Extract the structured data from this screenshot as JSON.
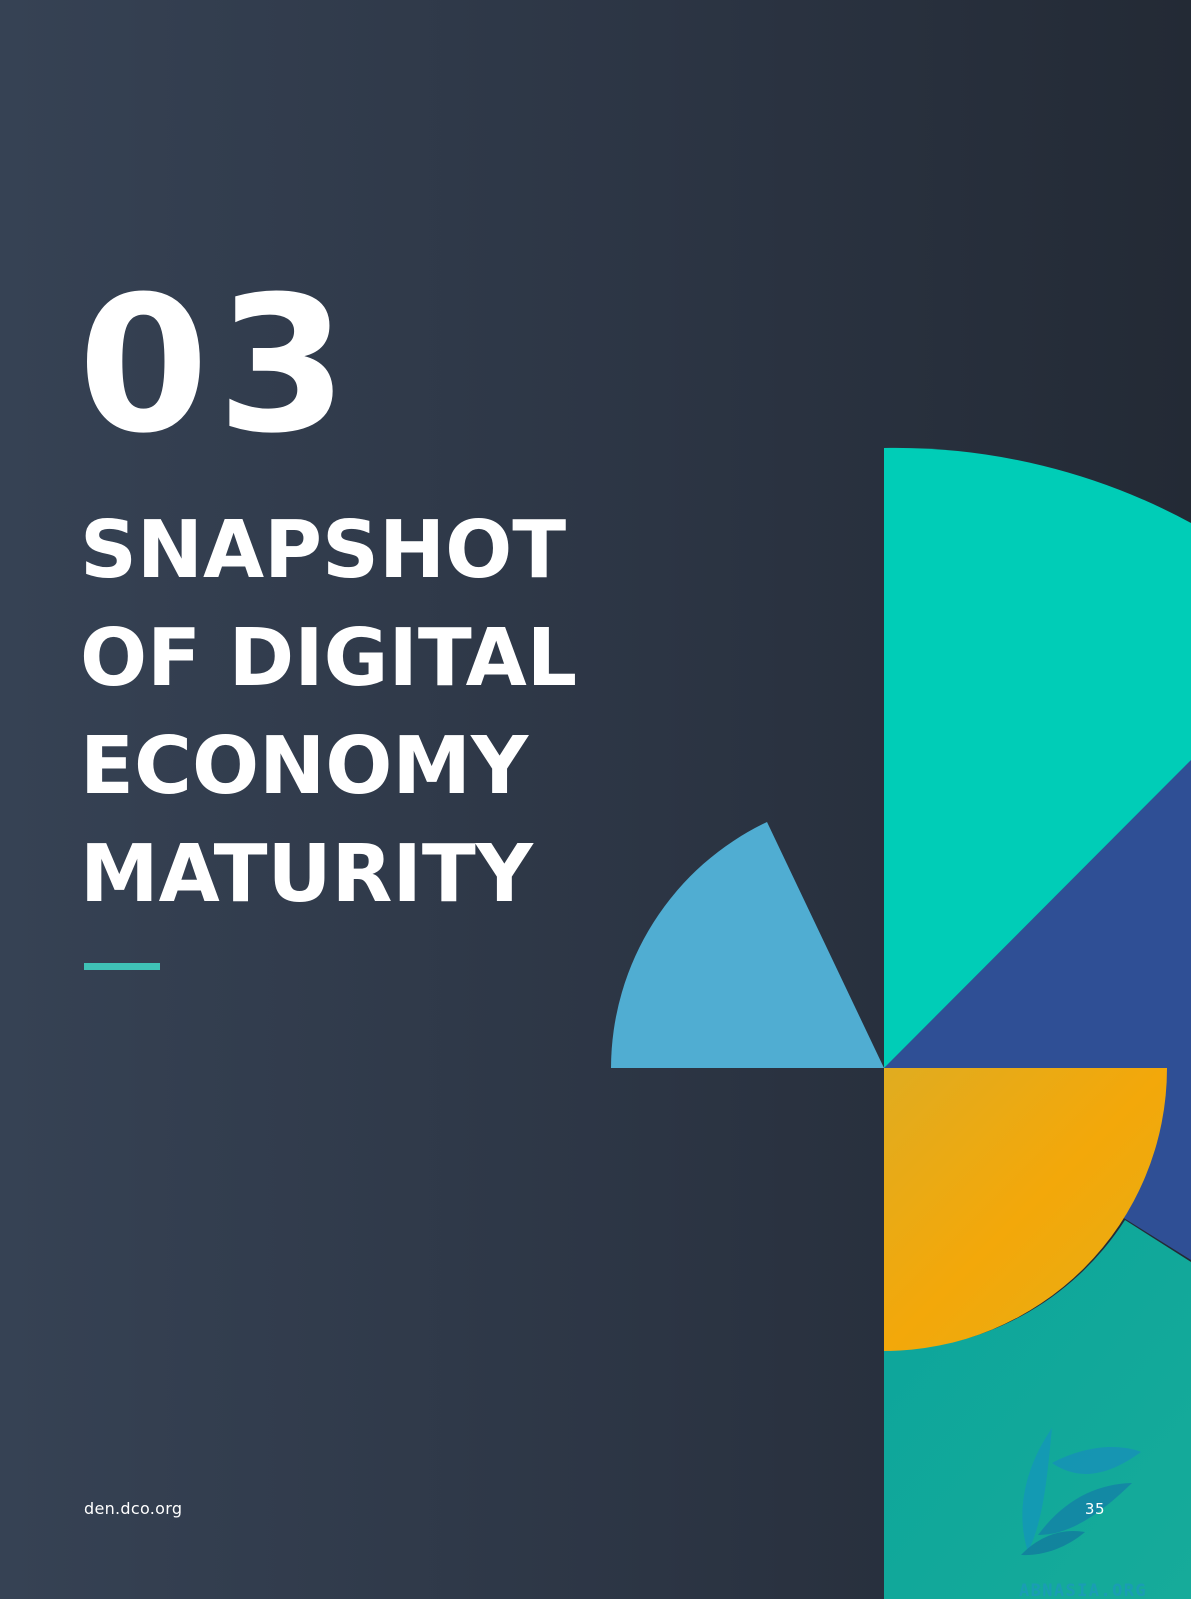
{
  "page": {
    "chapter_number": "03",
    "title_lines": [
      "SNAPSHOT",
      "OF DIGITAL",
      "ECONOMY",
      "MATURITY"
    ],
    "footer_url": "den.dco.org",
    "page_number": "35",
    "watermark": "ABNASIA.ORG"
  },
  "colors": {
    "background_start": "#364254",
    "background_end": "#232a35",
    "turquoise": "#00cdb7",
    "teal_dark": "#11a99a",
    "navy": "#2f4f95",
    "sky_blue": "#50add2",
    "amber": "#f3a80a",
    "accent_rule": "#3fc2b6"
  }
}
